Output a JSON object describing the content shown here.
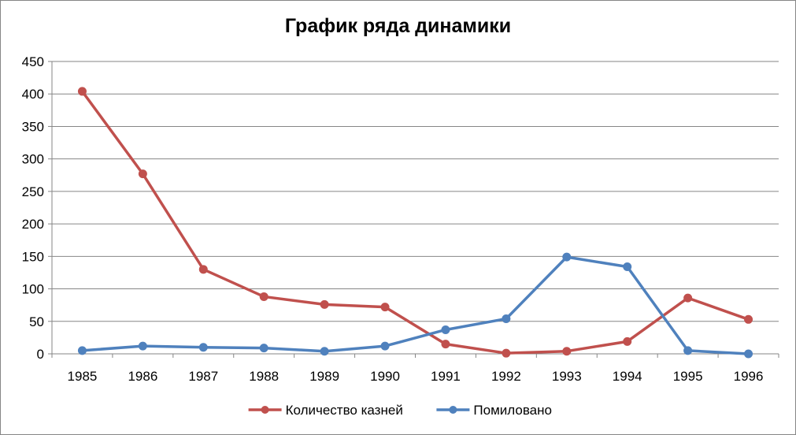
{
  "chart_data": {
    "type": "line",
    "title": "График ряда динамики",
    "xlabel": "",
    "ylabel": "",
    "categories": [
      "1985",
      "1986",
      "1987",
      "1988",
      "1989",
      "1990",
      "1991",
      "1992",
      "1993",
      "1994",
      "1995",
      "1996"
    ],
    "ylim": [
      0,
      450
    ],
    "yticks": [
      0,
      50,
      100,
      150,
      200,
      250,
      300,
      350,
      400,
      450
    ],
    "grid": true,
    "legend_position": "bottom",
    "series": [
      {
        "name": "Количество казней",
        "color": "#C0504D",
        "values": [
          404,
          277,
          130,
          88,
          76,
          72,
          15,
          1,
          4,
          19,
          86,
          53
        ]
      },
      {
        "name": "Помиловано",
        "color": "#4F81BD",
        "values": [
          5,
          12,
          10,
          9,
          4,
          12,
          37,
          54,
          149,
          134,
          5,
          0
        ]
      }
    ]
  }
}
